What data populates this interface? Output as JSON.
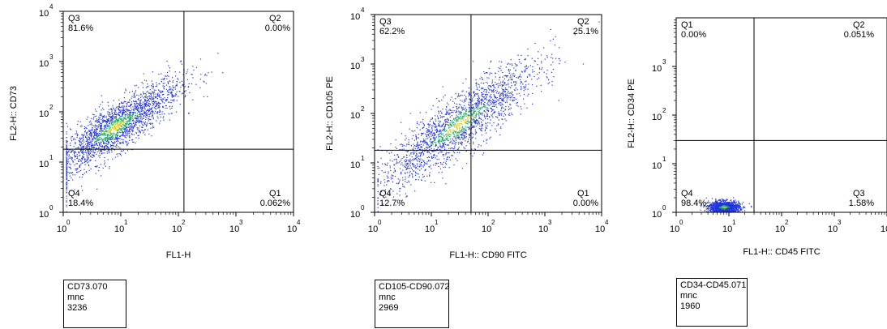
{
  "chart_data": [
    {
      "type": "scatter",
      "title": "",
      "xlabel": "FL1-H",
      "ylabel": "FL2-H:: CD73",
      "log_scale": true,
      "xlim": [
        1,
        10000
      ],
      "ylim": [
        1,
        10000
      ],
      "x_ticks": [
        "10",
        "10",
        "10",
        "10",
        "10"
      ],
      "x_tick_exponents": [
        "0",
        "1",
        "2",
        "3",
        "4"
      ],
      "y_ticks": [
        "10",
        "10",
        "10",
        "10",
        "10"
      ],
      "y_tick_exponents": [
        "0",
        "1",
        "2",
        "3",
        "4"
      ],
      "gate": {
        "x": 125,
        "y": 18
      },
      "quadrants": [
        {
          "name": "Q3",
          "value": "81.6%",
          "position": "top-left"
        },
        {
          "name": "Q2",
          "value": "0.00%",
          "position": "top-right"
        },
        {
          "name": "Q4",
          "value": "18.4%",
          "position": "bottom-left"
        },
        {
          "name": "Q1",
          "value": "0.062%",
          "position": "bottom-right"
        }
      ],
      "cloud": {
        "center_x": 8,
        "center_y": 50,
        "spread": 0.45,
        "slope": 0.9,
        "count": 3236
      },
      "sample_info": {
        "name": "CD73.070",
        "type": "mnc",
        "events": "3236"
      },
      "colors": {
        "points": "#2233dd",
        "dense": "#22aa66",
        "peak": "#ddcc22"
      }
    },
    {
      "type": "scatter",
      "title": "",
      "xlabel": "FL1-H:: CD90 FITC",
      "ylabel": "FL2-H:: CD105 PE",
      "log_scale": true,
      "xlim": [
        1,
        10000
      ],
      "ylim": [
        1,
        10000
      ],
      "x_ticks": [
        "10",
        "10",
        "10",
        "10",
        "10"
      ],
      "x_tick_exponents": [
        "0",
        "1",
        "2",
        "3",
        "4"
      ],
      "y_ticks": [
        "10",
        "10",
        "10",
        "10",
        "10"
      ],
      "y_tick_exponents": [
        "0",
        "1",
        "2",
        "3",
        "4"
      ],
      "gate": {
        "x": 50,
        "y": 18
      },
      "quadrants": [
        {
          "name": "Q3",
          "value": "62.2%",
          "position": "top-left"
        },
        {
          "name": "Q2",
          "value": "25.1%",
          "position": "top-right"
        },
        {
          "name": "Q4",
          "value": "12.7%",
          "position": "bottom-left"
        },
        {
          "name": "Q1",
          "value": "0.00%",
          "position": "bottom-right"
        }
      ],
      "cloud": {
        "center_x": 30,
        "center_y": 60,
        "spread": 0.55,
        "slope": 1.0,
        "count": 2969
      },
      "sample_info": {
        "name": "CD105-CD90.072",
        "type": "mnc",
        "events": "2969"
      },
      "colors": {
        "points": "#2233dd",
        "dense": "#22aa66",
        "peak": "#ddcc22"
      }
    },
    {
      "type": "scatter",
      "title": "",
      "xlabel": "FL1-H:: CD45 FITC",
      "ylabel": "FL2-H:: CD34 PE",
      "log_scale": true,
      "xlim": [
        1,
        10000
      ],
      "ylim": [
        1,
        10000
      ],
      "x_ticks": [
        "10",
        "10",
        "10",
        "10",
        "10"
      ],
      "x_tick_exponents": [
        "0",
        "1",
        "2",
        "3",
        "4"
      ],
      "y_ticks": [
        "10",
        "10",
        "10",
        "10"
      ],
      "y_tick_exponents": [
        "0",
        "1",
        "2",
        "3"
      ],
      "gate": {
        "x": 30,
        "y": 30
      },
      "quadrants": [
        {
          "name": "Q1",
          "value": "0.00%",
          "position": "top-left"
        },
        {
          "name": "Q2",
          "value": "0.051%",
          "position": "top-right"
        },
        {
          "name": "Q4",
          "value": "98.4%",
          "position": "bottom-left"
        },
        {
          "name": "Q3",
          "value": "1.58%",
          "position": "bottom-right"
        }
      ],
      "cloud": {
        "center_x": 8,
        "center_y": 1.3,
        "spread": 0.12,
        "slope": 0,
        "count": 1960
      },
      "sample_info": {
        "name": "CD34-CD45.071",
        "type": "mnc",
        "events": "1960"
      },
      "colors": {
        "points": "#2233dd",
        "dense": "#22aa66",
        "peak": "#ddcc22"
      }
    }
  ]
}
